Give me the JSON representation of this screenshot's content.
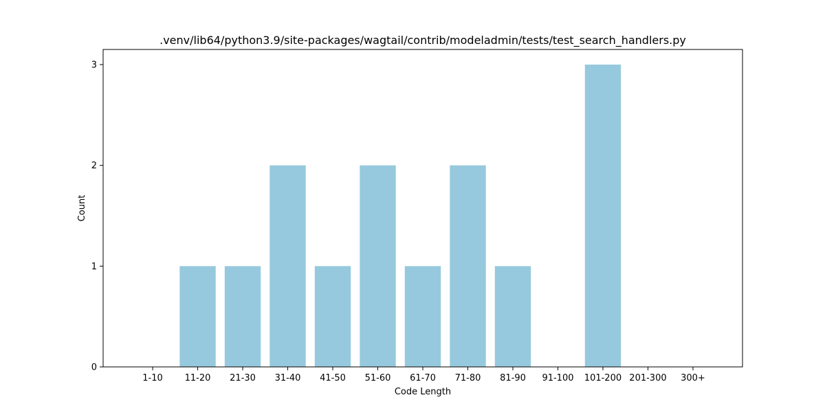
{
  "chart_data": {
    "type": "bar",
    "title": ".venv/lib64/python3.9/site-packages/wagtail/contrib/modeladmin/tests/test_search_handlers.py",
    "xlabel": "Code Length",
    "ylabel": "Count",
    "categories": [
      "1-10",
      "11-20",
      "21-30",
      "31-40",
      "41-50",
      "51-60",
      "61-70",
      "71-80",
      "81-90",
      "91-100",
      "101-200",
      "201-300",
      "300+"
    ],
    "values": [
      0,
      1,
      1,
      2,
      1,
      2,
      1,
      2,
      1,
      0,
      3,
      0,
      0
    ],
    "yticks": [
      "0",
      "1",
      "2",
      "3"
    ],
    "ylim": [
      0,
      3.15
    ],
    "grid": false,
    "legend": "none",
    "bar_color": "#96c9dd"
  }
}
